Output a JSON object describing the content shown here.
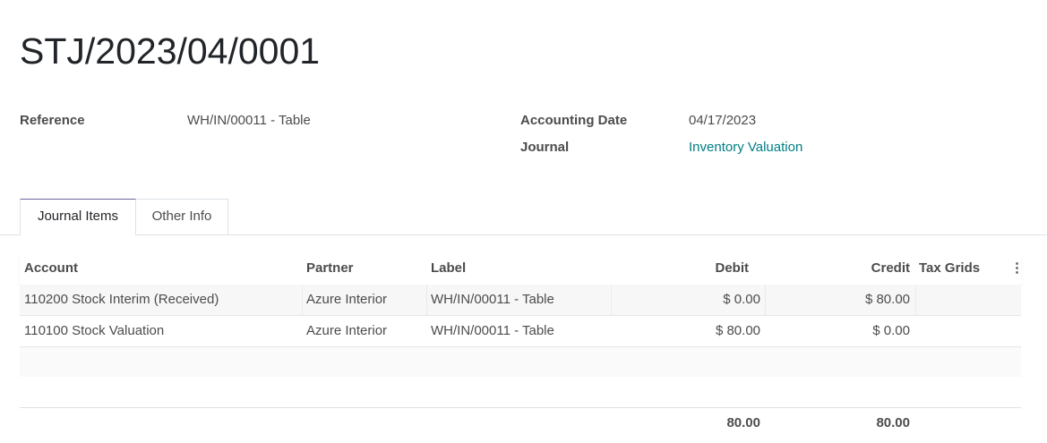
{
  "title": "STJ/2023/04/0001",
  "fields": {
    "reference_label": "Reference",
    "reference_value": "WH/IN/00011 - Table",
    "accounting_date_label": "Accounting Date",
    "accounting_date_value": "04/17/2023",
    "journal_label": "Journal",
    "journal_value": "Inventory Valuation"
  },
  "tabs": [
    {
      "label": "Journal Items",
      "active": true
    },
    {
      "label": "Other Info",
      "active": false
    }
  ],
  "table": {
    "headers": {
      "account": "Account",
      "partner": "Partner",
      "label": "Label",
      "debit": "Debit",
      "credit": "Credit",
      "tax_grids": "Tax Grids",
      "options_icon": "vertical-dots-icon"
    },
    "rows": [
      {
        "account": "110200 Stock Interim (Received)",
        "partner": "Azure Interior",
        "label": "WH/IN/00011 - Table",
        "debit": "$ 0.00",
        "credit": "$ 80.00",
        "tax_grids": ""
      },
      {
        "account": "110100 Stock Valuation",
        "partner": "Azure Interior",
        "label": "WH/IN/00011 - Table",
        "debit": "$ 80.00",
        "credit": "$ 0.00",
        "tax_grids": ""
      }
    ],
    "totals": {
      "debit": "80.00",
      "credit": "80.00"
    }
  },
  "colors": {
    "link": "#017e84",
    "active_tab_border": "#71639e"
  }
}
